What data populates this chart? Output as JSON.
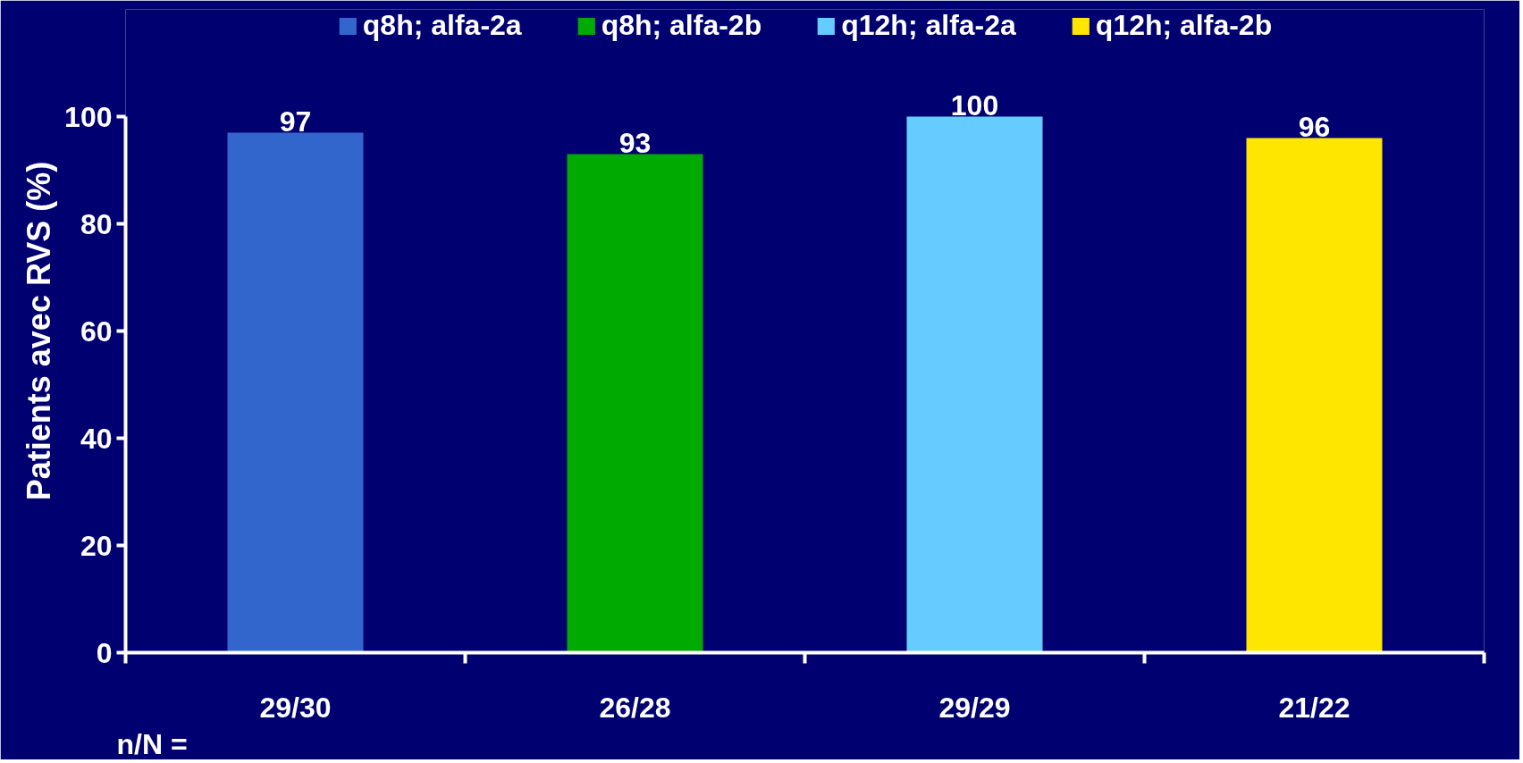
{
  "chart_data": {
    "type": "bar",
    "ylabel": "Patients avec RVS (%)",
    "categories": [
      "29/30",
      "26/28",
      "29/29",
      "21/22"
    ],
    "series": [
      {
        "name": "q8h; alfa-2a",
        "color": "#3366cc",
        "values": [
          97,
          null,
          null,
          null
        ]
      },
      {
        "name": "q8h; alfa-2b",
        "color": "#00aa00",
        "values": [
          null,
          93,
          null,
          null
        ]
      },
      {
        "name": "q12h; alfa-2a",
        "color": "#66ccff",
        "values": [
          null,
          null,
          100,
          null
        ]
      },
      {
        "name": "q12h; alfa-2b",
        "color": "#ffe600",
        "values": [
          null,
          null,
          null,
          96
        ]
      }
    ],
    "ylim": [
      0,
      100
    ],
    "yticks": [
      0,
      20,
      40,
      60,
      80,
      100
    ],
    "data_labels": true,
    "legend": "top",
    "grid": false,
    "annotations": [
      "n/N ="
    ]
  }
}
